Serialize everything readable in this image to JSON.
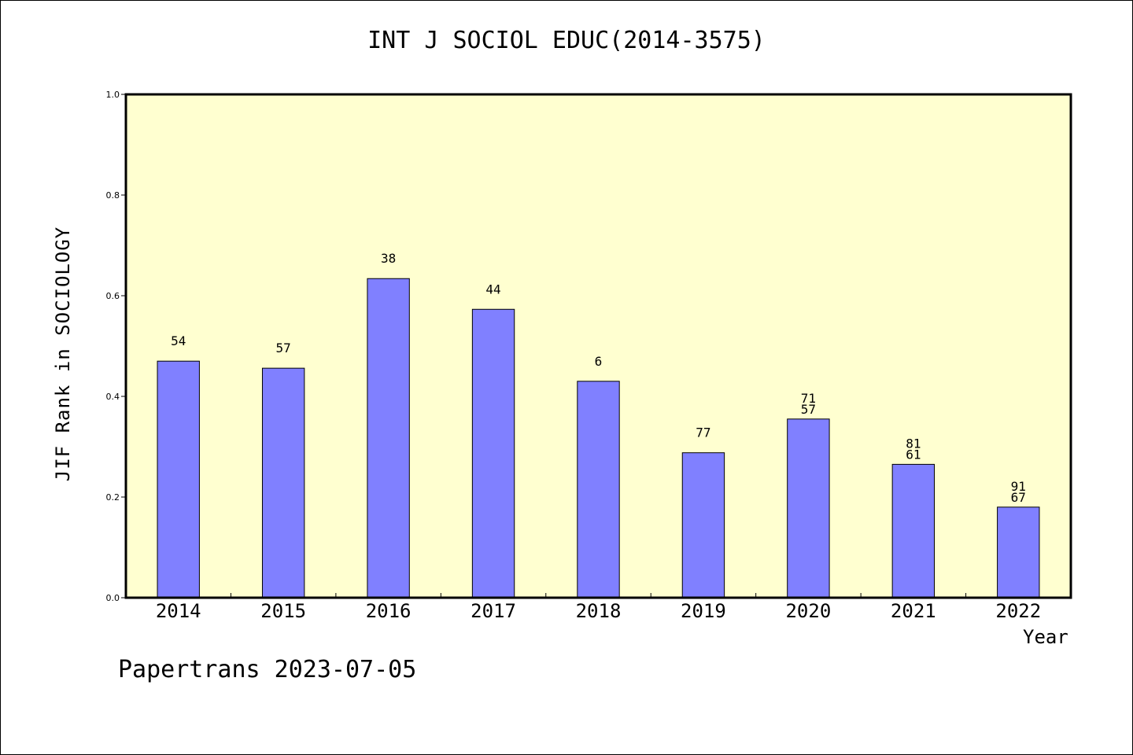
{
  "chart_data": {
    "type": "bar",
    "title": "INT J SOCIOL EDUC(2014-3575)",
    "ylabel": "JIF Rank in SOCIOLOGY",
    "xlabel": "Year",
    "ylim": [
      0,
      1
    ],
    "yticks": [
      "0.0",
      "0.2",
      "0.4",
      "0.6",
      "0.8",
      "1.0"
    ],
    "grid": false,
    "categories": [
      "2014",
      "2015",
      "2016",
      "2017",
      "2018",
      "2019",
      "2020",
      "2021",
      "2022"
    ],
    "values": [
      0.47,
      0.456,
      0.634,
      0.573,
      0.43,
      0.288,
      0.355,
      0.265,
      0.18
    ],
    "rank": [
      "54",
      "57",
      "38",
      "44",
      "6",
      "77",
      "57",
      "61",
      "67"
    ],
    "total": [
      "",
      "",
      "",
      "",
      "",
      "",
      "71",
      "81",
      "91"
    ],
    "colors": {
      "bar": "#8080ff",
      "plot_background": "#ffffd0"
    }
  },
  "footer": "Papertrans 2023-07-05"
}
